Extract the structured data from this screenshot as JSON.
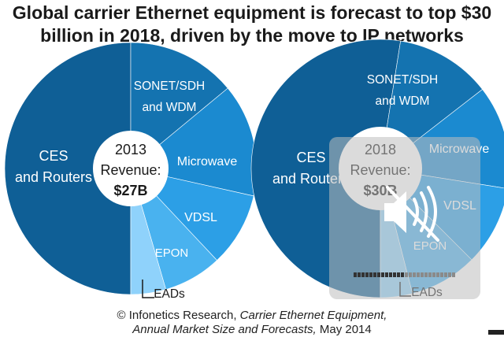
{
  "title_line1": "Global carrier Ethernet equipment is forecast to top $30",
  "title_line2": "billion in 2018, driven by the move to IP networks",
  "caption": {
    "line1_prefix": "© Infonetics Research, ",
    "line1_italic": "Carrier Ethernet Equipment,",
    "line2_italic": "Annual Market Size and Forecasts,",
    "line2_suffix": " May 2014"
  },
  "overlay": {
    "icon": "muted-speaker-icon"
  },
  "chart_data": [
    {
      "type": "pie",
      "center_year": "2013",
      "center_label": "Revenue:",
      "center_value": "$27B",
      "slices": [
        {
          "label": "CES and Routers",
          "value": 50.0,
          "color": "#0f5f96"
        },
        {
          "label": "SONET/SDH and WDM",
          "value": 14.0,
          "color": "#1473b0"
        },
        {
          "label": "Microwave",
          "value": 14.5,
          "color": "#1b8ad0"
        },
        {
          "label": "VDSL",
          "value": 9.5,
          "color": "#2c9fe6"
        },
        {
          "label": "EPON",
          "value": 7.5,
          "color": "#49b2ef"
        },
        {
          "label": "EADs",
          "value": 4.5,
          "color": "#8fd2fb"
        }
      ]
    },
    {
      "type": "pie",
      "center_year": "2018",
      "center_label": "Revenue:",
      "center_value": "$30B",
      "slices": [
        {
          "label": "CES and Routers",
          "value": 52.5,
          "color": "#0f5f96"
        },
        {
          "label": "SONET/SDH and WDM",
          "value": 12.0,
          "color": "#1473b0"
        },
        {
          "label": "Microwave",
          "value": 13.0,
          "color": "#1b8ad0"
        },
        {
          "label": "VDSL",
          "value": 10.0,
          "color": "#2c9fe6"
        },
        {
          "label": "EPON",
          "value": 8.5,
          "color": "#49b2ef"
        },
        {
          "label": "EADs",
          "value": 4.0,
          "color": "#8fd2fb"
        }
      ]
    }
  ]
}
